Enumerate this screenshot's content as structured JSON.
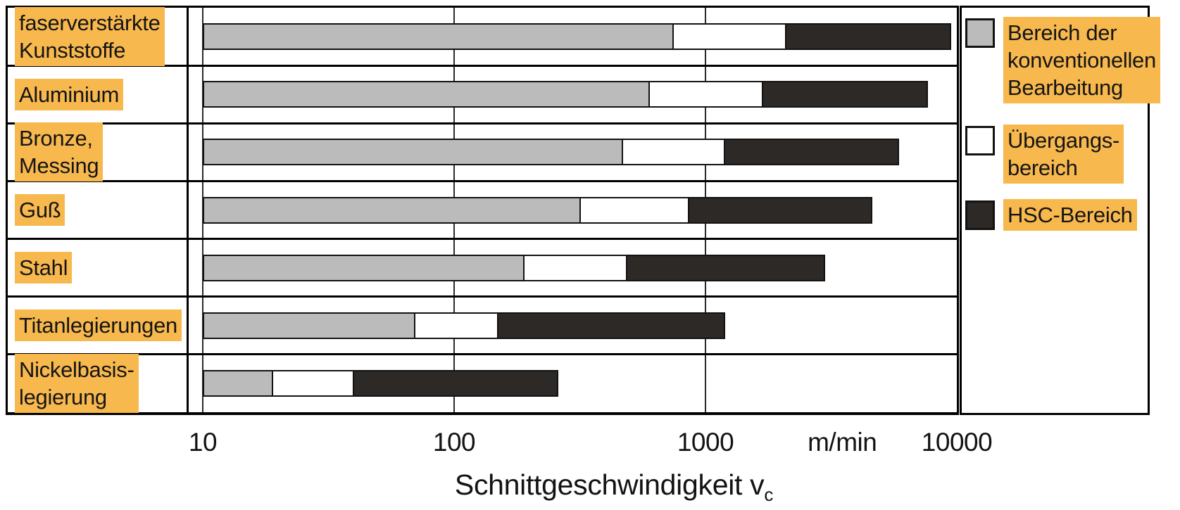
{
  "chart_data": {
    "type": "bar",
    "variant": "horizontal-stacked-range",
    "x_scale": "log",
    "xlim": [
      10,
      10000
    ],
    "grid": true,
    "grid_values": [
      10,
      100,
      1000
    ],
    "xlabel": "Schnittgeschwindigkeit v",
    "xlabel_subscript": "c",
    "x_unit": "m/min",
    "unit_label_position_value": 3500,
    "x_ticks": [
      {
        "value": 10,
        "label": "10"
      },
      {
        "value": 100,
        "label": "100"
      },
      {
        "value": 1000,
        "label": "1000"
      },
      {
        "value": 10000,
        "label": "10000"
      }
    ],
    "segment_order": [
      "konventionell",
      "uebergang",
      "hsc"
    ],
    "rows": [
      {
        "material_lines": [
          "faserverstärkte",
          "Kunststoffe"
        ],
        "ranges_m_min": {
          "start": 10,
          "konventionell_bis": 750,
          "uebergangsbereich_bis": 2100,
          "hsc_bis": 9500
        }
      },
      {
        "material_lines": [
          "Aluminium"
        ],
        "ranges_m_min": {
          "start": 10,
          "konventionell_bis": 600,
          "uebergangsbereich_bis": 1700,
          "hsc_bis": 7700
        }
      },
      {
        "material_lines": [
          "Bronze,",
          "Messing"
        ],
        "ranges_m_min": {
          "start": 10,
          "konventionell_bis": 470,
          "uebergangsbereich_bis": 1200,
          "hsc_bis": 5900
        }
      },
      {
        "material_lines": [
          "Guß"
        ],
        "ranges_m_min": {
          "start": 10,
          "konventionell_bis": 320,
          "uebergangsbereich_bis": 860,
          "hsc_bis": 4600
        }
      },
      {
        "material_lines": [
          "Stahl"
        ],
        "ranges_m_min": {
          "start": 10,
          "konventionell_bis": 190,
          "uebergangsbereich_bis": 490,
          "hsc_bis": 3000
        }
      },
      {
        "material_lines": [
          "Titanlegierungen"
        ],
        "ranges_m_min": {
          "start": 10,
          "konventionell_bis": 70,
          "uebergangsbereich_bis": 150,
          "hsc_bis": 1200
        }
      },
      {
        "material_lines": [
          "Nickelbasis-",
          "legierung"
        ],
        "ranges_m_min": {
          "start": 10,
          "konventionell_bis": 19,
          "uebergangsbereich_bis": 40,
          "hsc_bis": 260
        }
      }
    ],
    "legend_position": "right",
    "legend": [
      {
        "key": "konventionell",
        "lines": [
          "Bereich der",
          "konventionellen",
          "Bearbeitung"
        ]
      },
      {
        "key": "uebergang",
        "lines": [
          "Übergangs-",
          "bereich"
        ]
      },
      {
        "key": "hsc",
        "lines": [
          "HSC-Bereich"
        ]
      }
    ]
  },
  "colors": {
    "konventionell": "#bbbbbb",
    "uebergang": "#ffffff",
    "hsc": "#2d2926",
    "label_highlight": "#f7b84d",
    "line_black": "#000000"
  }
}
